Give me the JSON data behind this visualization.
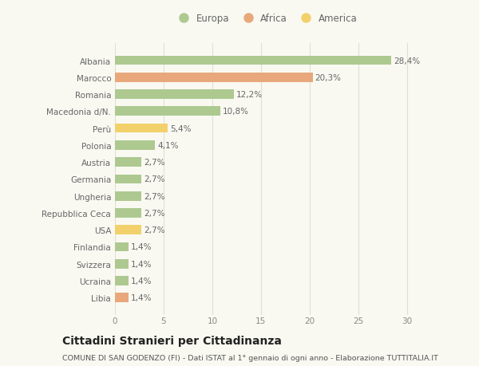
{
  "countries": [
    "Albania",
    "Marocco",
    "Romania",
    "Macedonia d/N.",
    "Perù",
    "Polonia",
    "Austria",
    "Germania",
    "Ungheria",
    "Repubblica Ceca",
    "USA",
    "Finlandia",
    "Svizzera",
    "Ucraina",
    "Libia"
  ],
  "values": [
    28.4,
    20.3,
    12.2,
    10.8,
    5.4,
    4.1,
    2.7,
    2.7,
    2.7,
    2.7,
    2.7,
    1.4,
    1.4,
    1.4,
    1.4
  ],
  "labels": [
    "28,4%",
    "20,3%",
    "12,2%",
    "10,8%",
    "5,4%",
    "4,1%",
    "2,7%",
    "2,7%",
    "2,7%",
    "2,7%",
    "2,7%",
    "1,4%",
    "1,4%",
    "1,4%",
    "1,4%"
  ],
  "colors": [
    "#adc990",
    "#e8a87c",
    "#adc990",
    "#adc990",
    "#f2d06b",
    "#adc990",
    "#adc990",
    "#adc990",
    "#adc990",
    "#adc990",
    "#f2d06b",
    "#adc990",
    "#adc990",
    "#adc990",
    "#e8a87c"
  ],
  "legend_labels": [
    "Europa",
    "Africa",
    "America"
  ],
  "legend_colors": [
    "#adc990",
    "#e8a87c",
    "#f2d06b"
  ],
  "xlim": [
    0,
    31
  ],
  "xticks": [
    0,
    5,
    10,
    15,
    20,
    25,
    30
  ],
  "title": "Cittadini Stranieri per Cittadinanza",
  "subtitle": "COMUNE DI SAN GODENZO (FI) - Dati ISTAT al 1° gennaio di ogni anno - Elaborazione TUTTITALIA.IT",
  "bg_color": "#f9f9f2",
  "grid_color": "#e0e0d0",
  "bar_height": 0.55,
  "label_fontsize": 7.5,
  "tick_fontsize": 7.5,
  "title_fontsize": 10,
  "subtitle_fontsize": 6.8,
  "label_color": "#666666",
  "tick_color": "#666666"
}
